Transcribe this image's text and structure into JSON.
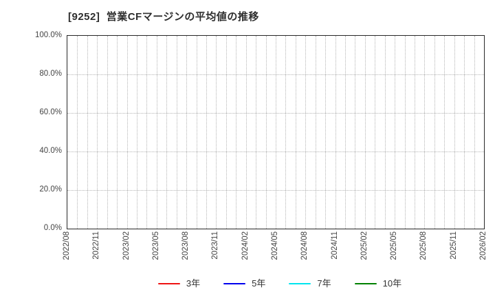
{
  "title": "[9252]  営業CFマージンの平均値の推移",
  "chart_data": {
    "type": "line",
    "title": "[9252]  営業CFマージンの平均値の推移",
    "xlabel": "",
    "ylabel": "",
    "ylim": [
      0,
      100
    ],
    "y_tick_labels": [
      "0.0%",
      "20.0%",
      "40.0%",
      "60.0%",
      "80.0%",
      "100.0%"
    ],
    "x_tick_labels": [
      "2022/08",
      "2022/11",
      "2023/02",
      "2023/05",
      "2023/08",
      "2023/11",
      "2024/02",
      "2024/05",
      "2024/08",
      "2024/11",
      "2025/02",
      "2025/05",
      "2025/08",
      "2025/11",
      "2026/02"
    ],
    "x_months_between_labels": 3,
    "grid": true,
    "grid_style": "dotted",
    "legend_position": "bottom-center",
    "series": [
      {
        "name": "3年",
        "color": "#ee1111",
        "values": []
      },
      {
        "name": "5年",
        "color": "#0000ee",
        "values": []
      },
      {
        "name": "7年",
        "color": "#00e5ee",
        "values": []
      },
      {
        "name": "10年",
        "color": "#008000",
        "values": []
      }
    ]
  }
}
